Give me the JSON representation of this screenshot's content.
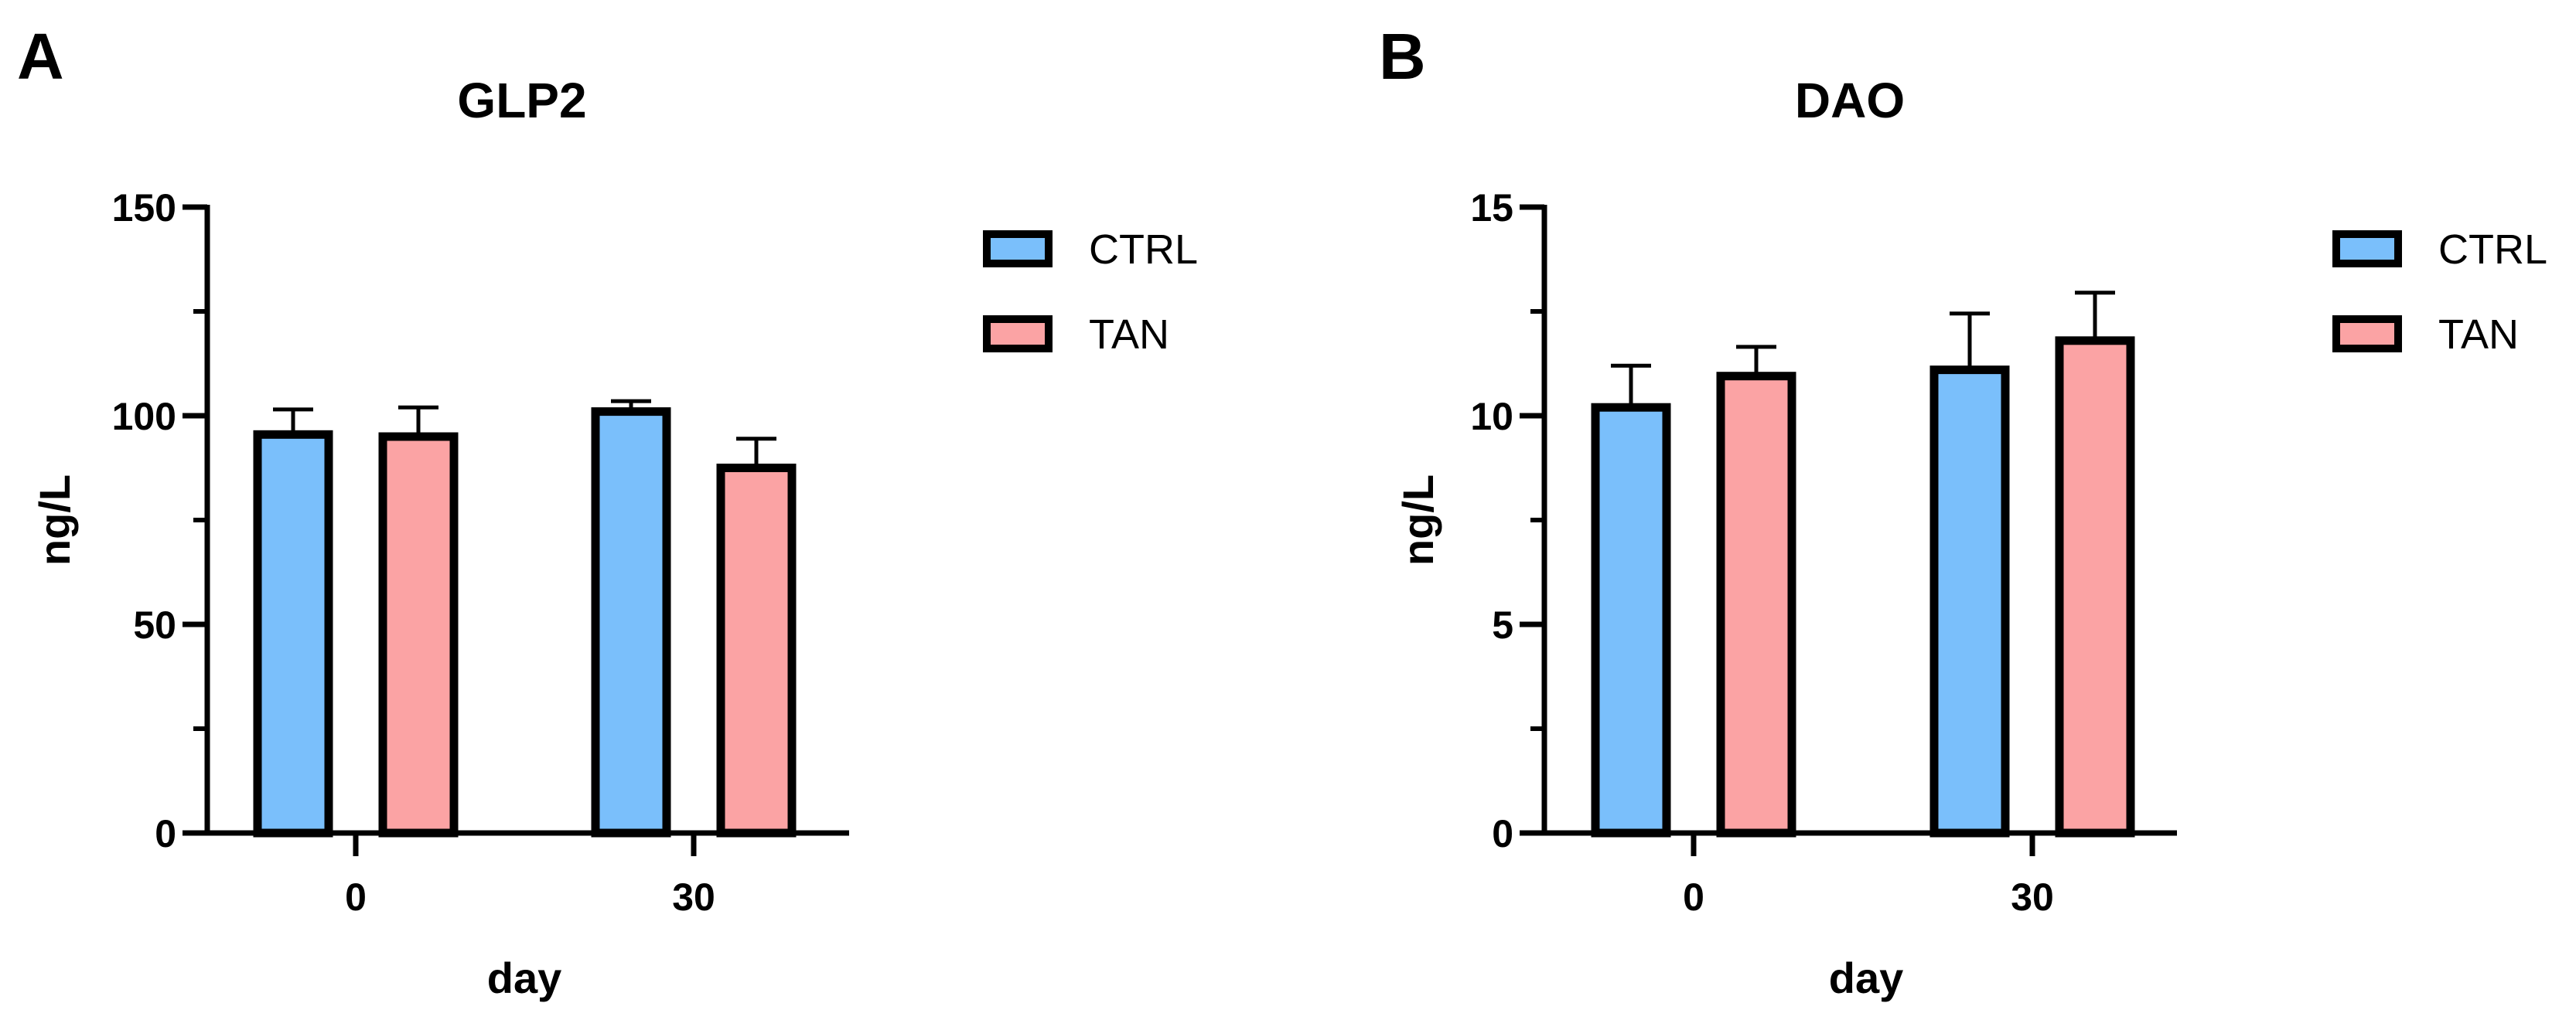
{
  "colors": {
    "CTRL": "#7ABFFB",
    "TAN": "#FBA3A4",
    "axis": "#000000"
  },
  "chart_data": [
    {
      "panel": "A",
      "type": "bar",
      "title": "GLP2",
      "xlabel": "day",
      "ylabel": "ng/L",
      "categories": [
        "0",
        "30"
      ],
      "ylim": [
        0,
        150
      ],
      "yticks": [
        0,
        50,
        100,
        150
      ],
      "y_minor_step": 25,
      "series": [
        {
          "name": "CTRL",
          "values": [
            95.5,
            101
          ],
          "errors": [
            6,
            2.5
          ]
        },
        {
          "name": "TAN",
          "values": [
            95,
            87.5
          ],
          "errors": [
            7,
            7
          ]
        }
      ],
      "legend": {
        "position": "top-right",
        "entries": [
          "CTRL",
          "TAN"
        ]
      },
      "grid": false
    },
    {
      "panel": "B",
      "type": "bar",
      "title": "DAO",
      "xlabel": "day",
      "ylabel": "ng/L",
      "categories": [
        "0",
        "30"
      ],
      "ylim": [
        0,
        15
      ],
      "yticks": [
        0,
        5,
        10,
        15
      ],
      "y_minor_step": 2.5,
      "series": [
        {
          "name": "CTRL",
          "values": [
            10.2,
            11.1
          ],
          "errors": [
            1.0,
            1.35
          ]
        },
        {
          "name": "TAN",
          "values": [
            10.95,
            11.8
          ],
          "errors": [
            0.7,
            1.15
          ]
        }
      ],
      "legend": {
        "position": "top-right",
        "entries": [
          "CTRL",
          "TAN"
        ]
      },
      "grid": false
    }
  ]
}
